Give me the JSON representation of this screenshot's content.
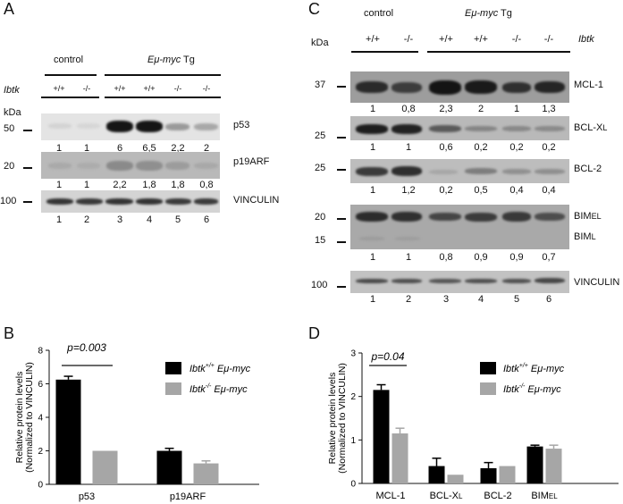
{
  "panelA": {
    "letter": "A",
    "control": "control",
    "emyc_prefix": "Eμ-",
    "emyc_gene": "myc",
    "emyc_suffix": " Tg",
    "ibtk": "Ibtk",
    "genotypes": [
      "+/+",
      "-/-",
      "+/+",
      "+/+",
      "-/-",
      "-/-"
    ],
    "kda": "kDa",
    "mw": [
      "50",
      "20",
      "100"
    ],
    "labels": [
      "p53",
      "p19ARF",
      "VINCULIN"
    ],
    "p53_quant": [
      "1",
      "1",
      "6",
      "6,5",
      "2,2",
      "2"
    ],
    "p19_quant": [
      "1",
      "1",
      "2,2",
      "1,8",
      "1,8",
      "0,8"
    ],
    "lanes": [
      "1",
      "2",
      "3",
      "4",
      "5",
      "6"
    ]
  },
  "panelC": {
    "letter": "C",
    "control": "control",
    "emyc_prefix": "Eμ-",
    "emyc_gene": "myc",
    "emyc_suffix": " Tg",
    "kda": "kDa",
    "ibtk": "Ibtk",
    "genotypes": [
      "+/+",
      "-/-",
      "+/+",
      "+/+",
      "-/-",
      "-/-"
    ],
    "mw": [
      "37",
      "25",
      "25",
      "20",
      "15",
      "100"
    ],
    "labels": {
      "mcl1": "MCL-1",
      "bclxl": "BCL-X",
      "bclxl_sub": "L",
      "bcl2": "BCL-2",
      "bim": "BIM",
      "bimel_sub": "EL",
      "biml_sub": "L",
      "vinculin": "VINCULIN"
    },
    "mcl1_quant": [
      "1",
      "0,8",
      "2,3",
      "2",
      "1",
      "1,3"
    ],
    "bclxl_quant": [
      "1",
      "1",
      "0,6",
      "0,2",
      "0,2",
      "0,2"
    ],
    "bcl2_quant": [
      "1",
      "1,2",
      "0,2",
      "0,5",
      "0,4",
      "0,4"
    ],
    "bim_quant": [
      "1",
      "1",
      "0,8",
      "0,9",
      "0,9",
      "0,7"
    ],
    "lanes": [
      "1",
      "2",
      "3",
      "4",
      "5",
      "6"
    ]
  },
  "panelB": {
    "letter": "B",
    "pvalue": "p=0.003",
    "legend": [
      {
        "gene": "Ibtk",
        "sup": "+/+",
        "emyc": "Eμ-myc"
      },
      {
        "gene": "Ibtk",
        "sup": "-/-",
        "emyc": "Eμ-myc"
      }
    ]
  },
  "panelD": {
    "letter": "D",
    "pvalue": "p=0.04",
    "legend": [
      {
        "gene": "Ibtk",
        "sup": "+/+",
        "emyc": "Eμ-myc"
      },
      {
        "gene": "Ibtk",
        "sup": "-/-",
        "emyc": "Eμ-myc"
      }
    ]
  },
  "colors": {
    "wt": "#000000",
    "ko": "#a6a6a6"
  },
  "chart_data": [
    {
      "type": "bar",
      "panel": "B",
      "ylabel": "Relative protein levels (Normalized to VINCULIN)",
      "ylabel_line1": "Relative protein levels",
      "ylabel_line2": "(Normalized  to VINCULIN)",
      "categories": [
        "p53",
        "p19ARF"
      ],
      "yticks": [
        "0",
        "2",
        "4",
        "6",
        "8"
      ],
      "ylim": [
        0,
        8
      ],
      "series": [
        {
          "name": "Ibtk+/+ Eμ-myc",
          "values": [
            6.25,
            2.0
          ],
          "errors": [
            0.2,
            0.15
          ]
        },
        {
          "name": "Ibtk-/- Eμ-myc",
          "values": [
            2.0,
            1.25
          ],
          "errors": [
            0.0,
            0.15
          ]
        }
      ]
    },
    {
      "type": "bar",
      "panel": "D",
      "ylabel": "Relative protein levels (Normalized to VINCULIN)",
      "ylabel_line1": "Relative protein levels",
      "ylabel_line2": "(Normalized  to VINCULIN)",
      "categories": [
        "MCL-1",
        "BCL-XL",
        "BCL-2",
        "BIMEL"
      ],
      "yticks": [
        "0",
        "1",
        "2",
        "3"
      ],
      "ylim": [
        0,
        3
      ],
      "series": [
        {
          "name": "Ibtk+/+ Eμ-myc",
          "values": [
            2.15,
            0.4,
            0.35,
            0.85
          ],
          "errors": [
            0.12,
            0.18,
            0.13,
            0.03
          ]
        },
        {
          "name": "Ibtk-/- Eμ-myc",
          "values": [
            1.15,
            0.2,
            0.4,
            0.8
          ],
          "errors": [
            0.12,
            0.0,
            0.0,
            0.08
          ]
        }
      ]
    }
  ]
}
